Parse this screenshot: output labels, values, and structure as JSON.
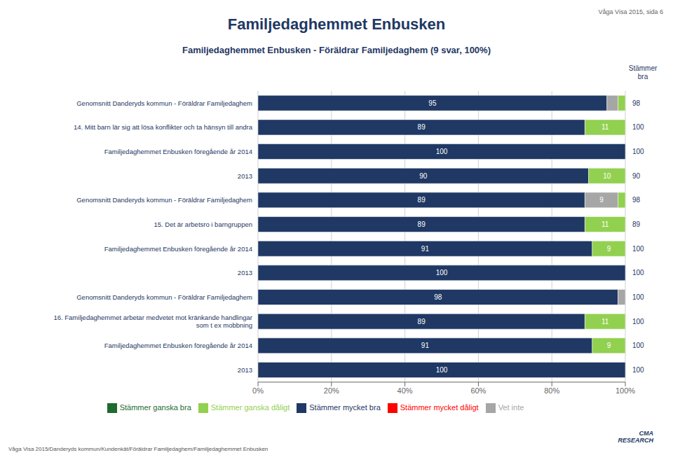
{
  "chart_data": {
    "type": "bar",
    "orientation": "horizontal",
    "stacked": true,
    "data_labels": true,
    "grid": true,
    "legend": "bottom",
    "title": "Familjedaghemmet Enbusken",
    "subtitle": "Familjedaghemmet Enbusken - Föräldrar Familjedaghem (9 svar, 100%)",
    "page_label": "Våga Visa 2015, sida 6",
    "footer": "Våga Visa 2015/Danderyds kommun/Kundenkät/Föräldrar Familjedaghem/Familjedaghemmet Enbusken",
    "annotations": [
      "CMA\nRESEARCH"
    ],
    "totals_header": "Stämmer\nbra",
    "categories": [
      "Genomsnitt Danderyds kommun - Föräldrar Familjedaghem",
      "14. Mitt barn lär sig att lösa konflikter och ta hänsyn till andra",
      "Familjedaghemmet Enbusken föregående år 2014",
      "2013",
      "Genomsnitt Danderyds kommun - Föräldrar Familjedaghem",
      "15. Det är arbetsro i barngruppen",
      "Familjedaghemmet Enbusken föregående år 2014",
      "2013",
      "Genomsnitt Danderyds kommun - Föräldrar Familjedaghem",
      "16. Familjedaghemmet arbetar medvetet mot kränkande handlingar\nsom t ex mobbning",
      "Familjedaghemmet Enbusken föregående år 2014",
      "2013"
    ],
    "totals": [
      98,
      100,
      100,
      90,
      98,
      89,
      100,
      100,
      100,
      100,
      100,
      100
    ],
    "series": [
      {
        "name": "Stämmer mycket bra",
        "color": "#1f3864",
        "values": [
          95,
          89,
          100,
          90,
          89,
          89,
          91,
          100,
          98,
          89,
          91,
          100
        ],
        "value_labels": [
          "95",
          "89",
          "100",
          "90",
          "89",
          "89",
          "91",
          "100",
          "98",
          "89",
          "91",
          "100"
        ]
      },
      {
        "name": "Stämmer ganska bra",
        "color": "#1e6b2e",
        "values": [
          0,
          0,
          0,
          0,
          0,
          0,
          0,
          0,
          0,
          0,
          0,
          0
        ],
        "value_labels": [
          null,
          null,
          null,
          null,
          null,
          null,
          null,
          null,
          null,
          null,
          null,
          null
        ]
      },
      {
        "name": "Vet inte",
        "color": "#a6a6a6",
        "values": [
          3,
          0,
          0,
          0,
          9,
          0,
          0,
          0,
          2,
          0,
          0,
          0
        ],
        "value_labels": [
          null,
          null,
          null,
          null,
          "9",
          null,
          null,
          null,
          null,
          null,
          null,
          null
        ]
      },
      {
        "name": "Stämmer ganska dåligt",
        "color": "#92d050",
        "values": [
          2,
          11,
          0,
          10,
          2,
          11,
          9,
          0,
          0,
          11,
          9,
          0
        ],
        "value_labels": [
          null,
          "11",
          null,
          "10",
          null,
          "11",
          "9",
          null,
          null,
          "11",
          "9",
          null
        ]
      },
      {
        "name": "Stämmer mycket dåligt",
        "color": "#ff0000",
        "values": [
          0,
          0,
          0,
          0,
          0,
          0,
          0,
          0,
          0,
          0,
          0,
          0
        ],
        "value_labels": [
          null,
          null,
          null,
          null,
          null,
          null,
          null,
          null,
          null,
          null,
          null,
          null
        ]
      }
    ],
    "xlim": [
      0,
      100
    ],
    "xticks": [
      {
        "value": 0,
        "label": "0%"
      },
      {
        "value": 20,
        "label": "20%"
      },
      {
        "value": 40,
        "label": "40%"
      },
      {
        "value": 60,
        "label": "60%"
      },
      {
        "value": 80,
        "label": "80%"
      },
      {
        "value": 100,
        "label": "100%"
      }
    ]
  }
}
